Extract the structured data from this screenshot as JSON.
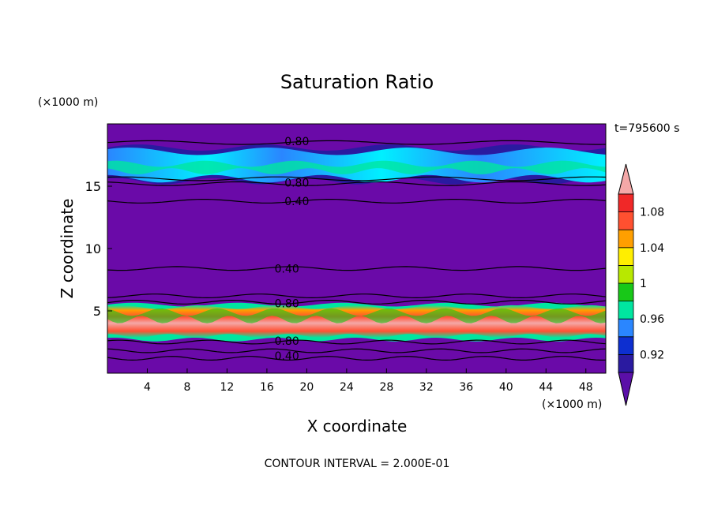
{
  "chart_data": {
    "type": "heatmap",
    "title": "Saturation Ratio",
    "xlabel": "X coordinate",
    "ylabel": "Z coordinate",
    "x_unit": "(×1000 m)",
    "y_unit": "(×1000 m)",
    "time_label": "t=795600 s",
    "footer": "CONTOUR INTERVAL = 2.000E-01",
    "xlim": [
      0,
      50
    ],
    "ylim": [
      0,
      20
    ],
    "x_ticks": [
      4,
      8,
      12,
      16,
      20,
      24,
      28,
      32,
      36,
      40,
      44,
      48
    ],
    "y_ticks": [
      5,
      10,
      15
    ],
    "colorbar": {
      "levels": [
        "0.92",
        "",
        "0.96",
        "",
        "1",
        "",
        "1.04",
        "",
        "1.08",
        ""
      ],
      "colors": [
        "#5a0fa8",
        "#2a1aa0",
        "#0d2fd0",
        "#2a86ff",
        "#00e6a0",
        "#18c818",
        "#b8e800",
        "#ffee00",
        "#ff9f00",
        "#ff5030",
        "#f02828",
        "#f4a8a8"
      ],
      "background_color": "#6a0aa8"
    },
    "contour_labels": [
      {
        "text": "0.80",
        "x": 19,
        "z": 18.6
      },
      {
        "text": "0.80",
        "x": 19,
        "z": 15.3
      },
      {
        "text": "0.40",
        "x": 19,
        "z": 13.8
      },
      {
        "text": "0.40",
        "x": 18,
        "z": 8.4
      },
      {
        "text": "0.80",
        "x": 18,
        "z": 5.6
      },
      {
        "text": "0.80",
        "x": 18,
        "z": 2.6
      },
      {
        "text": "0.40",
        "x": 18,
        "z": 1.4
      }
    ],
    "contour_lines_z": [
      18.5,
      15.6,
      15.2,
      13.8,
      8.4,
      6.2,
      5.7,
      2.5,
      1.8,
      1.2
    ],
    "bands": [
      {
        "name": "upper",
        "z_range": [
          15.6,
          17.8
        ]
      },
      {
        "name": "lower",
        "z_range": [
          3.0,
          5.3
        ]
      }
    ]
  }
}
